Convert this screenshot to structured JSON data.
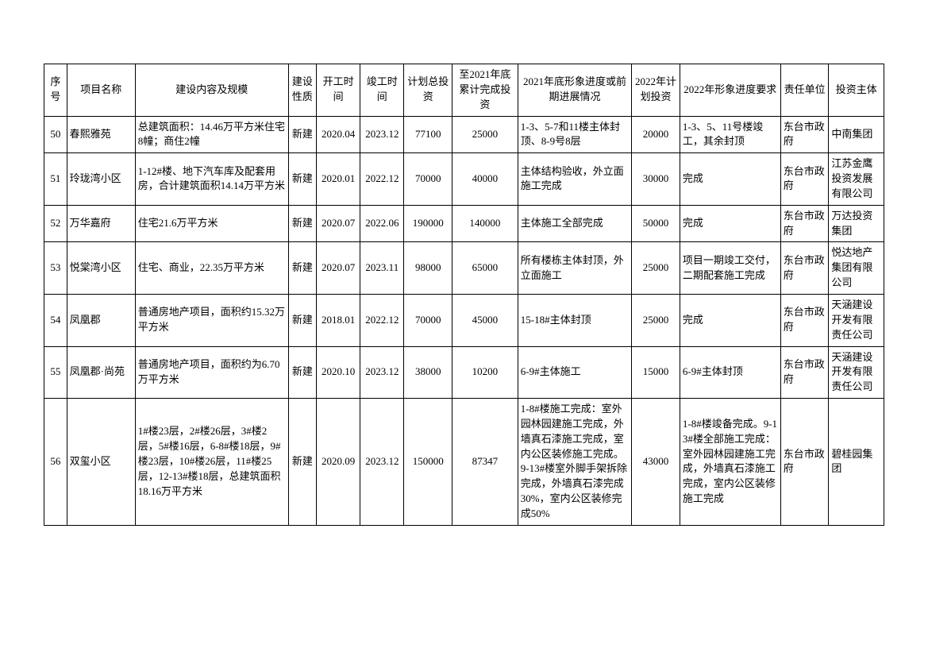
{
  "columns": [
    {
      "key": "seq",
      "label": "序号",
      "class": "col-seq"
    },
    {
      "key": "name",
      "label": "项目名称",
      "class": "col-name"
    },
    {
      "key": "content",
      "label": "建设内容及规模",
      "class": "col-content"
    },
    {
      "key": "nature",
      "label": "建设性质",
      "class": "col-nature"
    },
    {
      "key": "start",
      "label": "开工时间",
      "class": "col-start"
    },
    {
      "key": "end",
      "label": "竣工时间",
      "class": "col-end"
    },
    {
      "key": "plan",
      "label": "计划总投资",
      "class": "col-plan"
    },
    {
      "key": "cum",
      "label": "至2021年底累计完成投资",
      "class": "col-cum"
    },
    {
      "key": "status",
      "label": "2021年底形象进度或前期进展情况",
      "class": "col-status"
    },
    {
      "key": "plan22",
      "label": "2022年计划投资",
      "class": "col-plan22"
    },
    {
      "key": "req22",
      "label": "2022年形象进度要求",
      "class": "col-req22"
    },
    {
      "key": "resp",
      "label": "责任单位",
      "class": "col-resp"
    },
    {
      "key": "invest",
      "label": "投资主体",
      "class": "col-invest"
    }
  ],
  "rows": [
    {
      "seq": "50",
      "name": "春熙雅苑",
      "content": "总建筑面积：14.46万平方米住宅8幢；商住2幢",
      "nature": "新建",
      "start": "2020.04",
      "end": "2023.12",
      "plan": "77100",
      "cum": "25000",
      "status": "1-3、5-7和11楼主体封顶、8-9号8层",
      "plan22": "20000",
      "req22": "1-3、5、11号楼竣工，其余封顶",
      "resp": "东台市政府",
      "invest": "中南集团"
    },
    {
      "seq": "51",
      "name": "玲珑湾小区",
      "content": "1-12#楼、地下汽车库及配套用房，合计建筑面积14.14万平方米",
      "nature": "新建",
      "start": "2020.01",
      "end": "2022.12",
      "plan": "70000",
      "cum": "40000",
      "status": "主体结构验收，外立面施工完成",
      "plan22": "30000",
      "req22": "完成",
      "resp": "东台市政府",
      "invest": "江苏金鹰投资发展有限公司"
    },
    {
      "seq": "52",
      "name": "万华嘉府",
      "content": "住宅21.6万平方米",
      "nature": "新建",
      "start": "2020.07",
      "end": "2022.06",
      "plan": "190000",
      "cum": "140000",
      "status": "主体施工全部完成",
      "plan22": "50000",
      "req22": "完成",
      "resp": "东台市政府",
      "invest": "万达投资集团"
    },
    {
      "seq": "53",
      "name": "悦棠湾小区",
      "content": "住宅、商业，22.35万平方米",
      "nature": "新建",
      "start": "2020.07",
      "end": "2023.11",
      "plan": "98000",
      "cum": "65000",
      "status": "所有楼栋主体封顶，外立面施工",
      "plan22": "25000",
      "req22": "项目一期竣工交付，二期配套施工完成",
      "resp": "东台市政府",
      "invest": "悦达地产集团有限公司"
    },
    {
      "seq": "54",
      "name": "凤凰郡",
      "content": "普通房地产项目，面积约15.32万平方米",
      "nature": "新建",
      "start": "2018.01",
      "end": "2022.12",
      "plan": "70000",
      "cum": "45000",
      "status": "15-18#主体封顶",
      "plan22": "25000",
      "req22": "完成",
      "resp": "东台市政府",
      "invest": "天涵建设开发有限责任公司"
    },
    {
      "seq": "55",
      "name": "凤凰郡·尚苑",
      "content": "普通房地产项目，面积约为6.70万平方米",
      "nature": "新建",
      "start": "2020.10",
      "end": "2023.12",
      "plan": "38000",
      "cum": "10200",
      "status": "6-9#主体施工",
      "plan22": "15000",
      "req22": "6-9#主体封顶",
      "resp": "东台市政府",
      "invest": "天涵建设开发有限责任公司"
    },
    {
      "seq": "56",
      "name": "双玺小区",
      "content": "1#楼23层，2#楼26层，3#楼2层，5#楼16层，6-8#楼18层，9#楼23层，10#楼26层，11#楼25层，12-13#楼18层，总建筑面积18.16万平方米",
      "nature": "新建",
      "start": "2020.09",
      "end": "2023.12",
      "plan": "150000",
      "cum": "87347",
      "status": "1-8#楼施工完成：室外园林园建施工完成，外墙真石漆施工完成，室内公区装修施工完成。9-13#楼室外脚手架拆除完成，外墙真石漆完成30%，室内公区装修完成50%",
      "plan22": "43000",
      "req22": "1-8#楼竣备完成。9-13#楼全部施工完成：室外园林园建施工完成，外墙真石漆施工完成，室内公区装修施工完成",
      "resp": "东台市政府",
      "invest": "碧桂园集团"
    }
  ],
  "center_cols": [
    "seq",
    "nature",
    "start",
    "end",
    "plan",
    "cum",
    "plan22"
  ]
}
